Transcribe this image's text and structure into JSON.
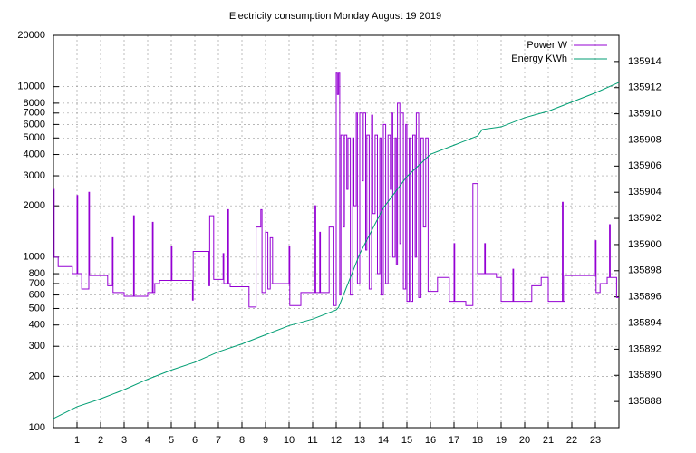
{
  "chart_data": {
    "type": "line",
    "title": "Electricity consumption Monday August 19 2019",
    "log_y": true,
    "grid": true,
    "legend": "top-right",
    "xlim": [
      0,
      24
    ],
    "xticks": [
      1,
      2,
      3,
      4,
      5,
      6,
      7,
      8,
      9,
      10,
      11,
      12,
      13,
      14,
      15,
      16,
      17,
      18,
      19,
      20,
      21,
      22,
      23
    ],
    "ylim": [
      100,
      20000
    ],
    "yticks": [
      100,
      200,
      300,
      400,
      500,
      600,
      700,
      800,
      1000,
      2000,
      3000,
      4000,
      5000,
      6000,
      7000,
      8000,
      10000,
      20000
    ],
    "y2lim": [
      135886,
      135916
    ],
    "y2ticks": [
      135888,
      135890,
      135892,
      135894,
      135896,
      135898,
      135900,
      135902,
      135904,
      135906,
      135908,
      135910,
      135912,
      135914
    ],
    "series": [
      {
        "name": "Power W",
        "color": "#9400d3",
        "steps": true,
        "x": [
          0,
          0.03,
          0.2,
          0.8,
          1.0,
          1.03,
          1.2,
          1.5,
          1.53,
          2.3,
          2.5,
          2.53,
          3.0,
          3.4,
          3.43,
          4.0,
          4.2,
          4.23,
          4.3,
          4.5,
          5.0,
          5.03,
          5.3,
          5.9,
          5.93,
          6.6,
          6.63,
          6.8,
          7.2,
          7.23,
          7.4,
          7.43,
          7.5,
          8.3,
          8.6,
          8.8,
          8.85,
          9.0,
          9.1,
          9.2,
          9.3,
          10.0,
          10.03,
          10.5,
          11.1,
          11.13,
          11.3,
          11.33,
          11.7,
          11.9,
          12.0,
          12.05,
          12.1,
          12.15,
          12.2,
          12.3,
          12.35,
          12.45,
          12.5,
          12.6,
          12.7,
          12.75,
          12.85,
          12.9,
          13.0,
          13.1,
          13.15,
          13.25,
          13.3,
          13.4,
          13.5,
          13.55,
          13.65,
          13.75,
          13.85,
          13.9,
          14.0,
          14.1,
          14.2,
          14.3,
          14.35,
          14.4,
          14.5,
          14.55,
          14.6,
          14.7,
          14.75,
          14.85,
          14.95,
          15.0,
          15.1,
          15.15,
          15.25,
          15.35,
          15.4,
          15.5,
          15.6,
          15.7,
          15.8,
          15.9,
          16.3,
          16.8,
          17.0,
          17.03,
          17.5,
          17.8,
          18.0,
          18.3,
          18.33,
          18.8,
          19.0,
          19.5,
          19.53,
          20.3,
          20.7,
          21.0,
          21.6,
          21.63,
          21.7,
          23.0,
          23.03,
          23.2,
          23.5,
          23.6,
          23.63,
          23.9,
          24.0
        ],
        "values": [
          2500,
          1000,
          880,
          800,
          2300,
          800,
          650,
          2400,
          780,
          680,
          1300,
          620,
          590,
          1750,
          590,
          620,
          1600,
          620,
          700,
          730,
          1150,
          730,
          730,
          560,
          1080,
          680,
          1750,
          740,
          1050,
          700,
          1900,
          700,
          670,
          510,
          1500,
          1900,
          620,
          1400,
          650,
          1300,
          700,
          1150,
          520,
          620,
          2000,
          620,
          1400,
          620,
          1500,
          520,
          12000,
          9000,
          12000,
          600,
          5200,
          1500,
          5200,
          2500,
          5000,
          600,
          5000,
          2000,
          7000,
          700,
          7000,
          2800,
          7000,
          1100,
          5200,
          650,
          6800,
          1800,
          5200,
          800,
          5000,
          600,
          6000,
          700,
          5200,
          2500,
          7000,
          1000,
          5000,
          900,
          8000,
          1200,
          7000,
          650,
          6000,
          550,
          5000,
          550,
          5200,
          1000,
          7000,
          580,
          5000,
          1500,
          5000,
          630,
          760,
          550,
          1200,
          550,
          520,
          2700,
          800,
          1200,
          800,
          760,
          550,
          850,
          550,
          680,
          760,
          550,
          2100,
          550,
          780,
          1250,
          620,
          700,
          760,
          1550,
          760,
          580,
          580
        ]
      },
      {
        "name": "Energy KWh",
        "color": "#009e73",
        "axis": "y2",
        "x": [
          0,
          1,
          2,
          3,
          4,
          5,
          6,
          7,
          8,
          9,
          10,
          11,
          12,
          12.1,
          13,
          14,
          15,
          16,
          17,
          18,
          18.2,
          19,
          20,
          21,
          22,
          23,
          24
        ],
        "values": [
          135886.7,
          135887.6,
          135888.2,
          135888.9,
          135889.7,
          135890.4,
          135891.0,
          135891.8,
          135892.4,
          135893.1,
          135893.8,
          135894.3,
          135895.0,
          135895.2,
          135899.3,
          135902.8,
          135905.2,
          135906.9,
          135907.6,
          135908.3,
          135908.8,
          135909.0,
          135909.7,
          135910.2,
          135910.9,
          135911.6,
          135912.4
        ]
      }
    ]
  }
}
